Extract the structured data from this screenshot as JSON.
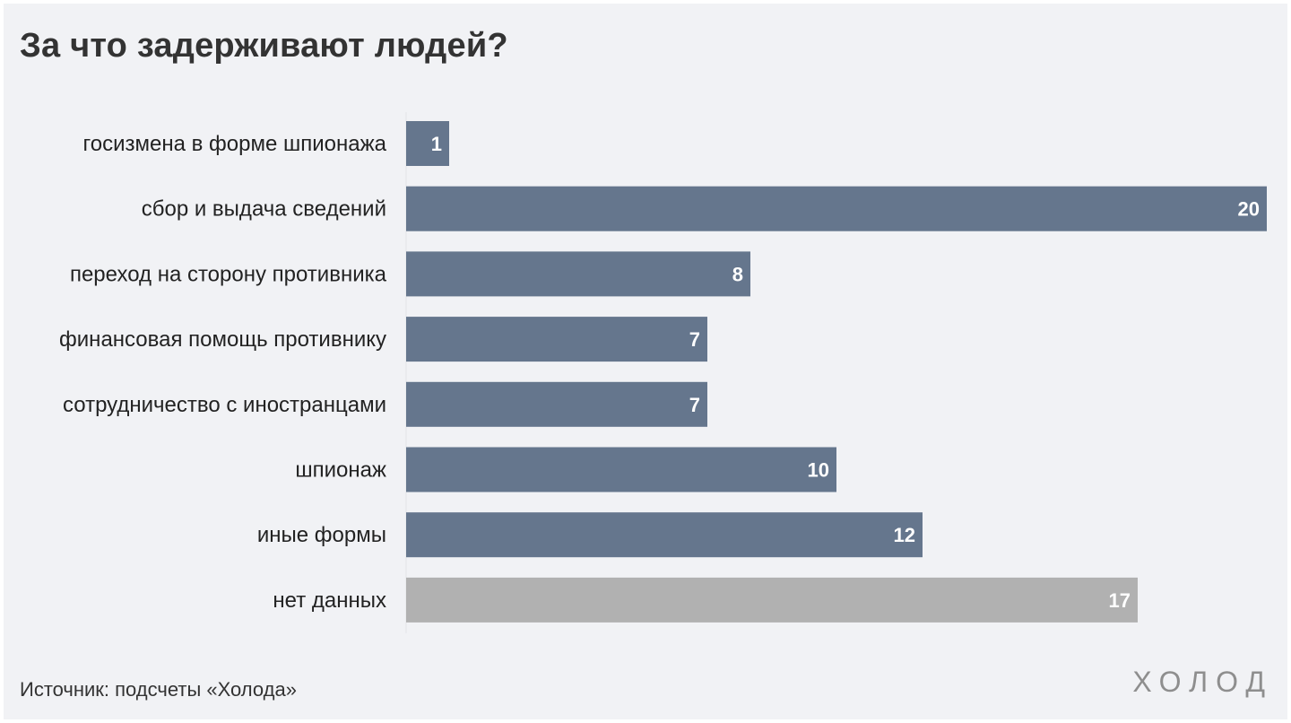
{
  "chart_data": {
    "type": "bar",
    "orientation": "horizontal",
    "title": "За что задерживают людей?",
    "categories": [
      "госизмена в форме шпионажа",
      "сбор и выдача сведений",
      "переход на сторону противника",
      "финансовая помощь противнику",
      "сотрудничество с иностранцами",
      "шпионаж",
      "иные формы",
      "нет данных"
    ],
    "values": [
      1,
      20,
      8,
      7,
      7,
      10,
      12,
      17
    ],
    "colors": [
      "#65768d",
      "#65768d",
      "#65768d",
      "#65768d",
      "#65768d",
      "#65768d",
      "#65768d",
      "#b1b1b1"
    ],
    "xlim": [
      0,
      20
    ],
    "grid": false,
    "legend": "none"
  },
  "footer": {
    "source": "Источник: подсчеты «Холода»",
    "logo": "ХОЛОД"
  }
}
